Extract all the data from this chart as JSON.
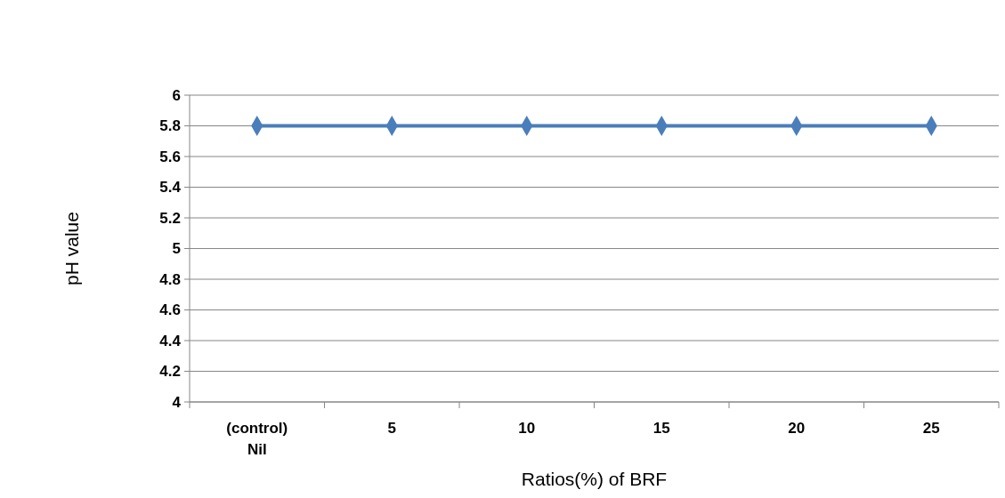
{
  "chart_data": {
    "type": "line",
    "xlabel": "Ratios(%) of BRF",
    "ylabel": "pH value",
    "categories": [
      "(control)\nNil",
      "5",
      "10",
      "15",
      "20",
      "25"
    ],
    "series": [
      {
        "color": "#4a7ebb",
        "values": [
          5.8,
          5.8,
          5.8,
          5.8,
          5.8,
          5.8
        ]
      }
    ],
    "ylim": [
      4,
      6
    ],
    "yticks": [
      4,
      4.2,
      4.4,
      4.6,
      4.8,
      5,
      5.2,
      5.4,
      5.6,
      5.8,
      6
    ],
    "grid": "y",
    "marker": "diamond",
    "line_style": "solid"
  }
}
